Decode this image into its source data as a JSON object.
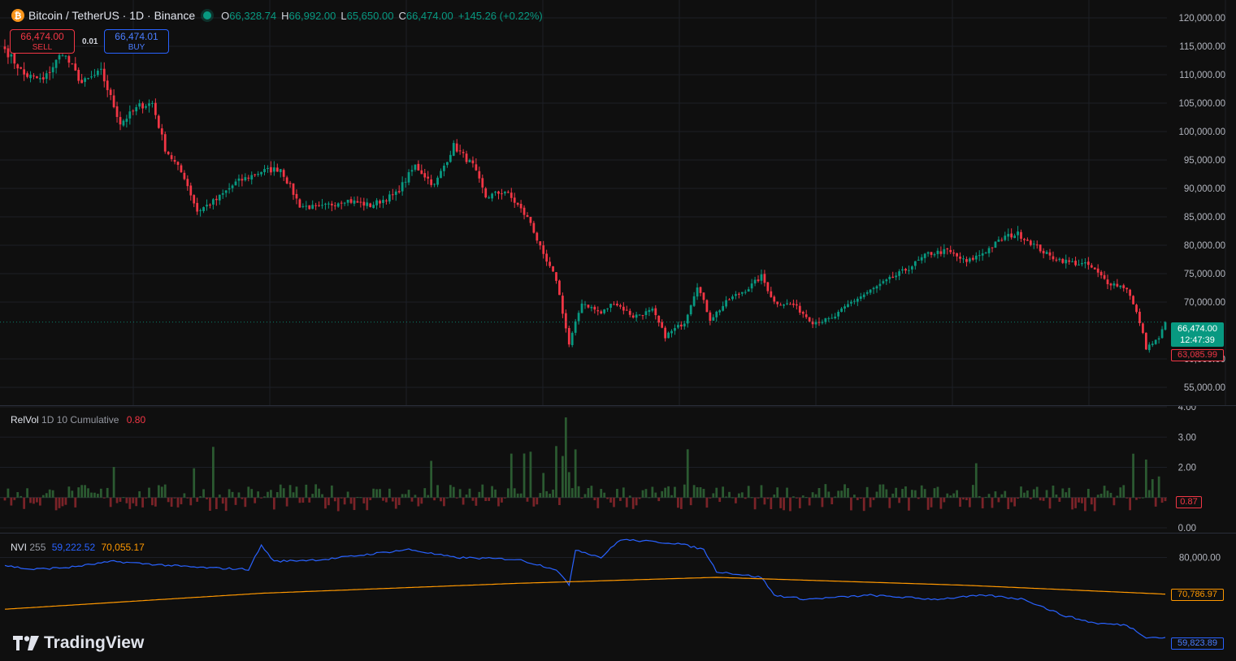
{
  "header": {
    "symbol_icon": "bitcoin-icon",
    "title": "Bitcoin / TetherUS · 1D · Binance",
    "status_color": "#089981",
    "open_label": "O",
    "open": "66,328.74",
    "high_label": "H",
    "high": "66,992.00",
    "low_label": "L",
    "low": "65,650.00",
    "close_label": "C",
    "close": "66,474.00",
    "change": "+145.26 (+0.22%)"
  },
  "trade": {
    "sell_price": "66,474.00",
    "sell_label": "SELL",
    "spread": "0.01",
    "buy_price": "66,474.01",
    "buy_label": "BUY"
  },
  "price_axis": {
    "ticks": [
      "120,000.00",
      "115,000.00",
      "110,000.00",
      "105,000.00",
      "100,000.00",
      "95,000.00",
      "90,000.00",
      "85,000.00",
      "80,000.00",
      "75,000.00",
      "70,000.00",
      "60,000.00",
      "55,000.00"
    ],
    "last_price": "66,474.00",
    "countdown": "12:47:39",
    "low_marker": "63,085.99"
  },
  "relvol": {
    "name": "RelVol",
    "params": "1D 10 Cumulative",
    "value": "0.80",
    "ticks": [
      "4.00",
      "3.00",
      "2.00",
      "0.00"
    ],
    "last_tag": "0.87"
  },
  "nvi": {
    "name": "NVI",
    "length": "255",
    "nvi_value": "59,222.52",
    "ema_value": "70,055.17",
    "ticks": [
      "80,000.00"
    ],
    "ema_tag": "70,786.97",
    "nvi_tag": "59,823.89"
  },
  "branding": {
    "logo_text": "TradingView"
  },
  "colors": {
    "up": "#089981",
    "down": "#f23645",
    "vol_up": "#2b5a31",
    "vol_down": "#7a2328",
    "nvi": "#2962ff",
    "ema": "#ff9800"
  },
  "chart_data": {
    "type": "candlestick",
    "symbol": "BTCUSDT",
    "interval": "1D",
    "ylim": [
      52000,
      122000
    ],
    "price_anchor_points": [
      {
        "i": 0,
        "c": 114500
      },
      {
        "i": 6,
        "c": 110000
      },
      {
        "i": 12,
        "c": 109000
      },
      {
        "i": 18,
        "c": 114000
      },
      {
        "i": 24,
        "c": 108500
      },
      {
        "i": 30,
        "c": 110500
      },
      {
        "i": 36,
        "c": 101500
      },
      {
        "i": 42,
        "c": 104500
      },
      {
        "i": 46,
        "c": 105000
      },
      {
        "i": 50,
        "c": 97000
      },
      {
        "i": 56,
        "c": 92000
      },
      {
        "i": 60,
        "c": 86000
      },
      {
        "i": 66,
        "c": 88000
      },
      {
        "i": 72,
        "c": 91000
      },
      {
        "i": 80,
        "c": 93000
      },
      {
        "i": 86,
        "c": 93500
      },
      {
        "i": 92,
        "c": 87000
      },
      {
        "i": 98,
        "c": 86500
      },
      {
        "i": 106,
        "c": 88000
      },
      {
        "i": 114,
        "c": 87000
      },
      {
        "i": 122,
        "c": 89000
      },
      {
        "i": 128,
        "c": 94000
      },
      {
        "i": 134,
        "c": 90500
      },
      {
        "i": 140,
        "c": 97500
      },
      {
        "i": 146,
        "c": 94000
      },
      {
        "i": 150,
        "c": 88500
      },
      {
        "i": 156,
        "c": 89500
      },
      {
        "i": 160,
        "c": 87000
      },
      {
        "i": 164,
        "c": 84000
      },
      {
        "i": 168,
        "c": 78000
      },
      {
        "i": 172,
        "c": 74000
      },
      {
        "i": 176,
        "c": 62500
      },
      {
        "i": 180,
        "c": 70000
      },
      {
        "i": 186,
        "c": 68000
      },
      {
        "i": 190,
        "c": 70000
      },
      {
        "i": 196,
        "c": 67500
      },
      {
        "i": 202,
        "c": 68500
      },
      {
        "i": 206,
        "c": 64000
      },
      {
        "i": 212,
        "c": 66500
      },
      {
        "i": 216,
        "c": 73000
      },
      {
        "i": 220,
        "c": 67000
      },
      {
        "i": 226,
        "c": 70500
      },
      {
        "i": 232,
        "c": 72500
      },
      {
        "i": 236,
        "c": 74500
      },
      {
        "i": 240,
        "c": 70000
      },
      {
        "i": 246,
        "c": 69500
      },
      {
        "i": 252,
        "c": 66500
      },
      {
        "i": 258,
        "c": 67000
      },
      {
        "i": 264,
        "c": 70000
      },
      {
        "i": 270,
        "c": 72000
      },
      {
        "i": 276,
        "c": 74000
      },
      {
        "i": 282,
        "c": 76000
      },
      {
        "i": 288,
        "c": 78500
      },
      {
        "i": 294,
        "c": 79000
      },
      {
        "i": 300,
        "c": 77000
      },
      {
        "i": 306,
        "c": 79000
      },
      {
        "i": 312,
        "c": 81500
      },
      {
        "i": 316,
        "c": 82000
      },
      {
        "i": 320,
        "c": 80500
      },
      {
        "i": 326,
        "c": 78000
      },
      {
        "i": 332,
        "c": 77000
      },
      {
        "i": 338,
        "c": 76500
      },
      {
        "i": 344,
        "c": 73500
      },
      {
        "i": 350,
        "c": 72500
      },
      {
        "i": 354,
        "c": 66500
      },
      {
        "i": 356,
        "c": 62000
      },
      {
        "i": 360,
        "c": 63500
      },
      {
        "i": 362,
        "c": 66474
      }
    ],
    "relvol_ylim": [
      0,
      4
    ],
    "nvi_ylim": [
      54000,
      86000
    ],
    "nvi_anchor_points": [
      {
        "i": 0,
        "v": 78000
      },
      {
        "i": 8,
        "v": 77000
      },
      {
        "i": 20,
        "v": 77500
      },
      {
        "i": 34,
        "v": 79000
      },
      {
        "i": 42,
        "v": 78500
      },
      {
        "i": 60,
        "v": 77500
      },
      {
        "i": 76,
        "v": 77000
      },
      {
        "i": 80,
        "v": 83000
      },
      {
        "i": 84,
        "v": 79000
      },
      {
        "i": 100,
        "v": 79500
      },
      {
        "i": 126,
        "v": 82000
      },
      {
        "i": 140,
        "v": 80000
      },
      {
        "i": 160,
        "v": 79500
      },
      {
        "i": 172,
        "v": 77000
      },
      {
        "i": 176,
        "v": 73000
      },
      {
        "i": 178,
        "v": 82000
      },
      {
        "i": 186,
        "v": 80000
      },
      {
        "i": 192,
        "v": 84500
      },
      {
        "i": 210,
        "v": 83500
      },
      {
        "i": 218,
        "v": 82000
      },
      {
        "i": 222,
        "v": 76500
      },
      {
        "i": 236,
        "v": 75000
      },
      {
        "i": 240,
        "v": 70500
      },
      {
        "i": 250,
        "v": 69500
      },
      {
        "i": 270,
        "v": 70500
      },
      {
        "i": 290,
        "v": 69500
      },
      {
        "i": 306,
        "v": 70500
      },
      {
        "i": 318,
        "v": 69500
      },
      {
        "i": 330,
        "v": 65500
      },
      {
        "i": 340,
        "v": 63500
      },
      {
        "i": 350,
        "v": 63000
      },
      {
        "i": 356,
        "v": 60000
      },
      {
        "i": 362,
        "v": 59823
      }
    ],
    "ema_anchor_points": [
      {
        "i": 0,
        "v": 67000
      },
      {
        "i": 80,
        "v": 71000
      },
      {
        "i": 160,
        "v": 73500
      },
      {
        "i": 222,
        "v": 75000
      },
      {
        "i": 300,
        "v": 73000
      },
      {
        "i": 362,
        "v": 70787
      }
    ],
    "bar_count": 363
  }
}
